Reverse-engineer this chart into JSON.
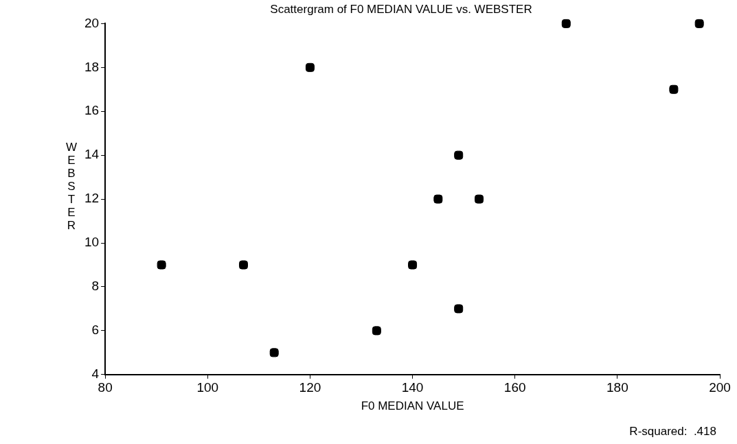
{
  "chart_data": {
    "type": "scatter",
    "title": "Scattergram of F0 MEDIAN VALUE vs. WEBSTER",
    "xlabel": "F0 MEDIAN VALUE",
    "ylabel": "WEBSTER",
    "annotations": [
      "R-squared:  .418"
    ],
    "series": [
      {
        "color": "#000000",
        "x": [
          91,
          107,
          113,
          120,
          133,
          140,
          145,
          149,
          149,
          153,
          170,
          191,
          196
        ],
        "values": [
          9,
          9,
          5,
          18,
          6,
          9,
          12,
          14,
          7,
          12,
          20,
          17,
          20
        ]
      }
    ],
    "xlim": [
      80,
      200
    ],
    "xticks": [
      80,
      100,
      120,
      140,
      160,
      180,
      200
    ],
    "ylim": [
      4,
      20
    ],
    "yticks": [
      4,
      6,
      8,
      10,
      12,
      14,
      16,
      18,
      20
    ],
    "grid": false,
    "legend": false,
    "marker": "square"
  }
}
